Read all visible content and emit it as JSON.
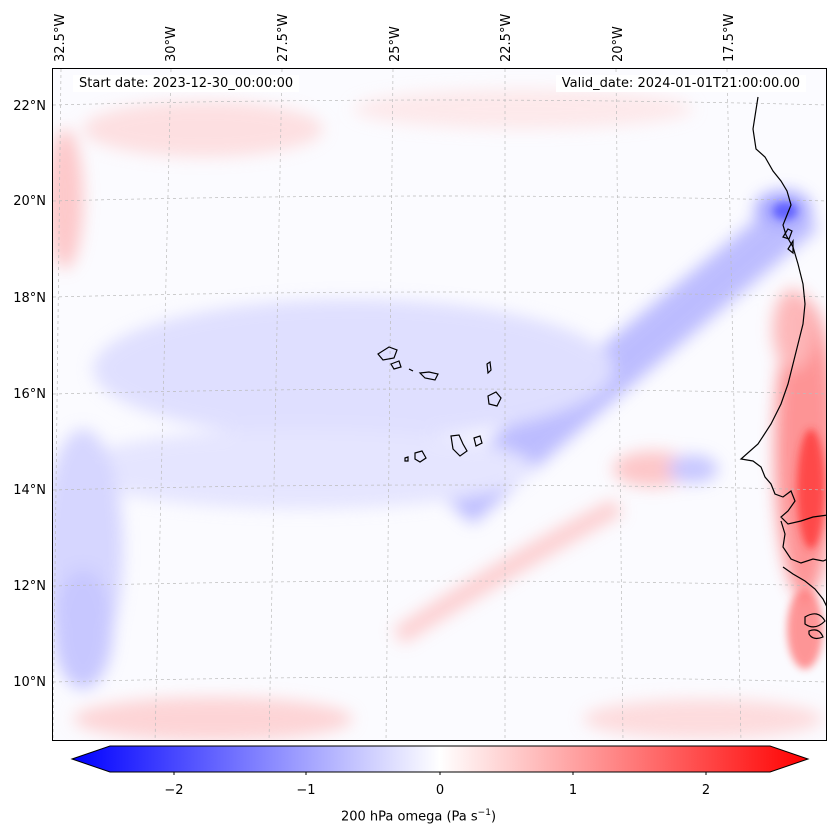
{
  "map": {
    "start_date": "Start date: 2023-12-30_00:00:00",
    "valid_date": "Valid_date: 2024-01-01T21:00:00.00",
    "lon_labels": [
      "32.5°W",
      "30°W",
      "27.5°W",
      "25°W",
      "22.5°W",
      "20°W",
      "17.5°W"
    ],
    "lat_labels": [
      "22°N",
      "20°N",
      "18°N",
      "16°N",
      "14°N",
      "12°N",
      "10°N"
    ],
    "colors": {
      "negative": "#0000ff",
      "zero": "#ffffff",
      "positive": "#ff0000",
      "coast": "#000000",
      "grid": "#bbbbbb"
    }
  },
  "colorbar": {
    "label_prefix": "200 hPa omega (Pa s",
    "label_exp": "−1",
    "label_suffix": ")",
    "ticks": [
      "−2",
      "−1",
      "0",
      "1",
      "2"
    ],
    "range": [
      -2.6,
      2.6
    ]
  }
}
